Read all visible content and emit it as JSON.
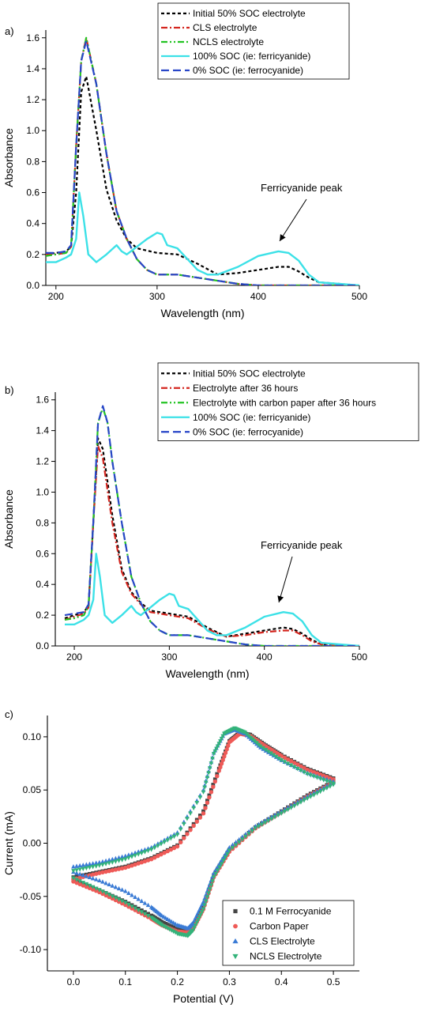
{
  "chart_data": [
    {
      "panel_label": "a)",
      "type": "line",
      "xlabel": "Wavelength (nm)",
      "ylabel": "Absorbance",
      "xlim": [
        190,
        500
      ],
      "ylim": [
        0,
        1.65
      ],
      "xticks": [
        200,
        300,
        400,
        500
      ],
      "yticks": [
        0.0,
        0.2,
        0.4,
        0.6,
        0.8,
        1.0,
        1.2,
        1.4,
        1.6
      ],
      "legend_position": "top-right",
      "annotation": {
        "text": "Ferricyanide peak",
        "target": [
          420,
          0.23
        ]
      },
      "series": [
        {
          "name": "Initial 50% SOC electrolyte",
          "color": "#000000",
          "dash": "short",
          "x": [
            190,
            200,
            210,
            215,
            220,
            225,
            230,
            240,
            250,
            260,
            270,
            280,
            300,
            320,
            340,
            360,
            380,
            400,
            420,
            430,
            440,
            450,
            460,
            480,
            500
          ],
          "y": [
            0.2,
            0.21,
            0.22,
            0.25,
            0.6,
            1.25,
            1.35,
            1.0,
            0.62,
            0.42,
            0.3,
            0.24,
            0.21,
            0.2,
            0.14,
            0.07,
            0.08,
            0.1,
            0.12,
            0.12,
            0.09,
            0.05,
            0.02,
            0.01,
            0.0
          ]
        },
        {
          "name": "CLS electrolyte",
          "color": "#d4261f",
          "dash": "dashdot",
          "x": [
            190,
            200,
            210,
            215,
            220,
            225,
            230,
            240,
            250,
            260,
            270,
            280,
            290,
            300,
            320,
            340,
            360,
            380,
            400,
            450,
            500
          ],
          "y": [
            0.2,
            0.2,
            0.21,
            0.25,
            0.9,
            1.45,
            1.6,
            1.3,
            0.85,
            0.48,
            0.3,
            0.17,
            0.1,
            0.07,
            0.07,
            0.05,
            0.03,
            0.01,
            0.0,
            0.0,
            0.0
          ]
        },
        {
          "name": "NCLS electrolyte",
          "color": "#22c322",
          "dash": "dashdotdot",
          "x": [
            190,
            200,
            210,
            215,
            220,
            225,
            230,
            240,
            250,
            260,
            270,
            280,
            290,
            300,
            320,
            340,
            360,
            380,
            400,
            450,
            500
          ],
          "y": [
            0.19,
            0.2,
            0.21,
            0.25,
            0.9,
            1.45,
            1.6,
            1.3,
            0.85,
            0.48,
            0.3,
            0.17,
            0.1,
            0.07,
            0.07,
            0.05,
            0.03,
            0.01,
            0.0,
            0.0,
            0.0
          ]
        },
        {
          "name": "100% SOC (ie: ferricyanide)",
          "color": "#3ce1e7",
          "dash": "solid",
          "x": [
            190,
            200,
            210,
            215,
            220,
            223,
            227,
            232,
            240,
            250,
            260,
            265,
            270,
            280,
            290,
            300,
            305,
            310,
            320,
            330,
            340,
            350,
            360,
            380,
            400,
            420,
            430,
            440,
            450,
            460,
            480,
            500
          ],
          "y": [
            0.15,
            0.15,
            0.18,
            0.2,
            0.3,
            0.6,
            0.45,
            0.2,
            0.15,
            0.2,
            0.26,
            0.22,
            0.2,
            0.25,
            0.3,
            0.34,
            0.33,
            0.26,
            0.24,
            0.17,
            0.1,
            0.07,
            0.07,
            0.12,
            0.19,
            0.22,
            0.21,
            0.16,
            0.07,
            0.02,
            0.01,
            0.0
          ]
        },
        {
          "name": "0% SOC (ie: ferrocyanide)",
          "color": "#2846c8",
          "dash": "long",
          "x": [
            190,
            200,
            210,
            215,
            220,
            225,
            230,
            240,
            250,
            260,
            270,
            280,
            290,
            300,
            320,
            340,
            360,
            380,
            400,
            450,
            500
          ],
          "y": [
            0.21,
            0.21,
            0.22,
            0.26,
            0.9,
            1.45,
            1.58,
            1.3,
            0.85,
            0.48,
            0.3,
            0.17,
            0.1,
            0.07,
            0.07,
            0.05,
            0.03,
            0.01,
            0.0,
            0.0,
            0.0
          ]
        }
      ]
    },
    {
      "panel_label": "b)",
      "type": "line",
      "xlabel": "Wavelength (nm)",
      "ylabel": "Absorbance",
      "xlim": [
        180,
        500
      ],
      "ylim": [
        0,
        1.65
      ],
      "xticks": [
        200,
        300,
        400,
        500
      ],
      "yticks": [
        0.0,
        0.2,
        0.4,
        0.6,
        0.8,
        1.0,
        1.2,
        1.4,
        1.6
      ],
      "legend_position": "top-right",
      "annotation": {
        "text": "Ferricyanide peak",
        "target": [
          422,
          0.21
        ]
      },
      "series": [
        {
          "name": "Initial 50% SOC electrolyte",
          "color": "#000000",
          "dash": "short",
          "x": [
            190,
            200,
            210,
            215,
            220,
            225,
            230,
            240,
            250,
            260,
            270,
            280,
            300,
            320,
            340,
            360,
            380,
            400,
            420,
            430,
            440,
            450,
            460,
            480,
            500
          ],
          "y": [
            0.18,
            0.2,
            0.22,
            0.26,
            0.8,
            1.35,
            1.28,
            0.85,
            0.5,
            0.35,
            0.28,
            0.23,
            0.21,
            0.19,
            0.12,
            0.06,
            0.08,
            0.1,
            0.12,
            0.11,
            0.08,
            0.04,
            0.01,
            0.0,
            0.0
          ]
        },
        {
          "name": "Electrolyte after 36 hours",
          "color": "#d4261f",
          "dash": "dashdot",
          "x": [
            190,
            200,
            210,
            215,
            220,
            225,
            230,
            240,
            250,
            260,
            270,
            280,
            300,
            320,
            340,
            360,
            380,
            400,
            420,
            430,
            440,
            450,
            460,
            480,
            500
          ],
          "y": [
            0.17,
            0.19,
            0.21,
            0.25,
            0.8,
            1.3,
            1.22,
            0.8,
            0.48,
            0.34,
            0.27,
            0.22,
            0.2,
            0.18,
            0.11,
            0.06,
            0.07,
            0.09,
            0.1,
            0.1,
            0.07,
            0.03,
            0.01,
            0.0,
            0.0
          ]
        },
        {
          "name": "Electrolyte with carbon paper after 36 hours",
          "color": "#22c322",
          "dash": "dashdotdot",
          "x": [
            190,
            200,
            210,
            215,
            220,
            225,
            230,
            235,
            240,
            250,
            260,
            270,
            280,
            290,
            300,
            320,
            340,
            360,
            380,
            400,
            450,
            500
          ],
          "y": [
            0.17,
            0.18,
            0.2,
            0.26,
            0.8,
            1.45,
            1.55,
            1.45,
            1.2,
            0.8,
            0.45,
            0.28,
            0.16,
            0.1,
            0.07,
            0.07,
            0.05,
            0.03,
            0.01,
            0.0,
            0.0,
            0.0
          ]
        },
        {
          "name": "100% SOC (ie: ferricyanide)",
          "color": "#3ce1e7",
          "dash": "solid",
          "x": [
            190,
            200,
            210,
            215,
            220,
            223,
            227,
            232,
            240,
            250,
            260,
            265,
            270,
            280,
            290,
            300,
            305,
            310,
            320,
            330,
            340,
            350,
            360,
            380,
            400,
            420,
            430,
            440,
            450,
            460,
            480,
            500
          ],
          "y": [
            0.14,
            0.14,
            0.17,
            0.2,
            0.3,
            0.6,
            0.45,
            0.2,
            0.15,
            0.2,
            0.26,
            0.22,
            0.2,
            0.25,
            0.3,
            0.34,
            0.33,
            0.26,
            0.24,
            0.17,
            0.1,
            0.07,
            0.07,
            0.12,
            0.19,
            0.22,
            0.21,
            0.16,
            0.07,
            0.02,
            0.01,
            0.0
          ]
        },
        {
          "name": "0% SOC (ie: ferrocyanide)",
          "color": "#2846c8",
          "dash": "long",
          "x": [
            190,
            200,
            210,
            215,
            220,
            225,
            230,
            235,
            240,
            250,
            260,
            270,
            280,
            290,
            300,
            320,
            340,
            360,
            380,
            400,
            450,
            500
          ],
          "y": [
            0.2,
            0.21,
            0.22,
            0.27,
            0.8,
            1.45,
            1.56,
            1.45,
            1.2,
            0.8,
            0.45,
            0.28,
            0.16,
            0.1,
            0.07,
            0.07,
            0.05,
            0.03,
            0.01,
            0.0,
            0.0,
            0.0
          ]
        }
      ]
    },
    {
      "panel_label": "c)",
      "type": "scatter",
      "xlabel": "Potential (V)",
      "ylabel": "Current (mA)",
      "xlim": [
        -0.05,
        0.55
      ],
      "ylim": [
        -0.12,
        0.12
      ],
      "xticks": [
        0.0,
        0.1,
        0.2,
        0.3,
        0.4,
        0.5
      ],
      "yticks": [
        -0.1,
        -0.05,
        0.0,
        0.05,
        0.1
      ],
      "legend_position": "bottom-right",
      "series": [
        {
          "name": "0.1 M Ferrocyanide",
          "color": "#444444",
          "marker": "square",
          "forward": {
            "x": [
              0,
              0.05,
              0.1,
              0.15,
              0.2,
              0.25,
              0.28,
              0.3,
              0.32,
              0.34,
              0.37,
              0.4,
              0.45,
              0.5
            ],
            "y": [
              -0.032,
              -0.027,
              -0.022,
              -0.014,
              -0.002,
              0.03,
              0.07,
              0.096,
              0.104,
              0.102,
              0.092,
              0.083,
              0.07,
              0.061
            ]
          },
          "reverse": {
            "x": [
              0.5,
              0.45,
              0.4,
              0.35,
              0.3,
              0.27,
              0.25,
              0.23,
              0.22,
              0.2,
              0.17,
              0.15,
              0.1,
              0.05,
              0
            ],
            "y": [
              0.058,
              0.045,
              0.03,
              0.015,
              -0.006,
              -0.03,
              -0.06,
              -0.08,
              -0.083,
              -0.081,
              -0.074,
              -0.068,
              -0.055,
              -0.044,
              -0.035
            ]
          }
        },
        {
          "name": "Carbon Paper",
          "color": "#ef5a57",
          "marker": "circle",
          "forward": {
            "x": [
              0,
              0.05,
              0.1,
              0.15,
              0.2,
              0.25,
              0.28,
              0.3,
              0.32,
              0.34,
              0.37,
              0.4,
              0.45,
              0.5
            ],
            "y": [
              -0.034,
              -0.028,
              -0.023,
              -0.015,
              -0.003,
              0.028,
              0.068,
              0.095,
              0.103,
              0.101,
              0.091,
              0.082,
              0.069,
              0.06
            ]
          },
          "reverse": {
            "x": [
              0.5,
              0.45,
              0.4,
              0.35,
              0.3,
              0.27,
              0.25,
              0.23,
              0.22,
              0.2,
              0.17,
              0.15,
              0.1,
              0.05,
              0
            ],
            "y": [
              0.057,
              0.044,
              0.029,
              0.014,
              -0.008,
              -0.032,
              -0.062,
              -0.081,
              -0.084,
              -0.083,
              -0.077,
              -0.071,
              -0.058,
              -0.046,
              -0.036
            ]
          }
        },
        {
          "name": "CLS Electrolyte",
          "color": "#3a7bd5",
          "marker": "triangle-up",
          "forward": {
            "x": [
              0,
              0.05,
              0.1,
              0.15,
              0.2,
              0.25,
              0.27,
              0.29,
              0.31,
              0.33,
              0.36,
              0.4,
              0.45,
              0.5
            ],
            "y": [
              -0.022,
              -0.018,
              -0.012,
              -0.004,
              0.01,
              0.05,
              0.085,
              0.103,
              0.107,
              0.103,
              0.09,
              0.078,
              0.066,
              0.058
            ]
          },
          "reverse": {
            "x": [
              0.5,
              0.45,
              0.4,
              0.35,
              0.3,
              0.27,
              0.25,
              0.23,
              0.22,
              0.2,
              0.17,
              0.15,
              0.1,
              0.05,
              0
            ],
            "y": [
              0.057,
              0.044,
              0.03,
              0.016,
              -0.004,
              -0.028,
              -0.055,
              -0.075,
              -0.08,
              -0.077,
              -0.068,
              -0.06,
              -0.045,
              -0.035,
              -0.027
            ]
          }
        },
        {
          "name": "NCLS Electrolyte",
          "color": "#33b37a",
          "marker": "triangle-down",
          "forward": {
            "x": [
              0,
              0.05,
              0.1,
              0.15,
              0.2,
              0.25,
              0.27,
              0.29,
              0.31,
              0.33,
              0.36,
              0.4,
              0.45,
              0.5
            ],
            "y": [
              -0.026,
              -0.021,
              -0.015,
              -0.006,
              0.008,
              0.048,
              0.084,
              0.103,
              0.108,
              0.104,
              0.091,
              0.078,
              0.065,
              0.056
            ]
          },
          "reverse": {
            "x": [
              0.5,
              0.45,
              0.4,
              0.35,
              0.3,
              0.27,
              0.25,
              0.23,
              0.22,
              0.2,
              0.17,
              0.15,
              0.1,
              0.05,
              0
            ],
            "y": [
              0.055,
              0.042,
              0.028,
              0.014,
              -0.007,
              -0.032,
              -0.062,
              -0.082,
              -0.087,
              -0.085,
              -0.077,
              -0.07,
              -0.056,
              -0.044,
              -0.033
            ]
          }
        }
      ]
    }
  ]
}
